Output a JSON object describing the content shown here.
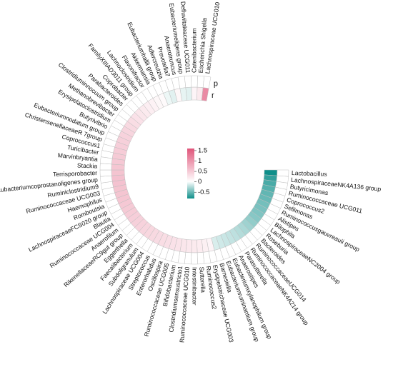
{
  "chart_data": {
    "type": "heatmap",
    "layout": "circular",
    "ring_headers": [
      "r",
      "p"
    ],
    "legend": {
      "ticks": [
        "1.5",
        "1",
        "0.5",
        "0",
        "-0.5"
      ],
      "range": [
        -0.8,
        1.6
      ],
      "colors": {
        "high": "#e0557a",
        "mid": "#ffffff",
        "low": "#0e8f8a"
      }
    },
    "groups": [
      {
        "label": "Lactobacillus",
        "r": -0.82,
        "p": 0.05
      },
      {
        "label": "LachnospiraceaeNK4A136 group",
        "r": -0.68,
        "p": 0.05
      },
      {
        "label": "Butyricimonas",
        "r": -0.6,
        "p": 0.05
      },
      {
        "label": "Ruminococcaceae UCG011",
        "r": -0.56,
        "p": 0.05
      },
      {
        "label": "Coprococcus2",
        "r": -0.52,
        "p": 0.05
      },
      {
        "label": "Sellimonas",
        "r": -0.5,
        "p": 0.05
      },
      {
        "label": "Ruminococcusgauvreauii group",
        "r": -0.46,
        "p": 0.05
      },
      {
        "label": "Alistipes",
        "r": -0.44,
        "p": 0.05
      },
      {
        "label": "Bilophila",
        "r": -0.42,
        "p": 0.05
      },
      {
        "label": "LachnospiraceaeNC2004 group",
        "r": -0.4,
        "p": 0.05
      },
      {
        "label": "Roseburia",
        "r": -0.36,
        "p": 0.05
      },
      {
        "label": "Bacteroides",
        "r": -0.32,
        "p": 0.05
      },
      {
        "label": "RuminococcaceaeUCG014",
        "r": -0.28,
        "p": 0.05
      },
      {
        "label": "RuminococcaceaeNK4A214 group",
        "r": -0.25,
        "p": 0.05
      },
      {
        "label": "Parasutterella",
        "r": -0.22,
        "p": 0.05
      },
      {
        "label": "Anaerostipes",
        "r": -0.2,
        "p": 0.05
      },
      {
        "label": "Eubacteriumxylanophilum group",
        "r": -0.18,
        "p": 0.05
      },
      {
        "label": "Eubacteriumruminantium group",
        "r": -0.16,
        "p": 0.05
      },
      {
        "label": "Barnesiella",
        "r": -0.13,
        "p": 0.05
      },
      {
        "label": "Erysipelotrichaceae UCG003",
        "r": 0.1,
        "p": 0.05
      },
      {
        "label": "Ruminococcus2",
        "r": 0.14,
        "p": 0.05
      },
      {
        "label": "Sutterella",
        "r": 0.18,
        "p": 0.05
      },
      {
        "label": "Intestinibacter",
        "r": 0.2,
        "p": 0.05
      },
      {
        "label": "Ruminococcaceae UCG010",
        "r": 0.22,
        "p": 0.05
      },
      {
        "label": "Clostridiumsensustricto1",
        "r": 0.24,
        "p": 0.05
      },
      {
        "label": "Bifidobacterium",
        "r": 0.26,
        "p": 0.05
      },
      {
        "label": "Ruminococcaceae UCG005",
        "r": 0.28,
        "p": 0.05
      },
      {
        "label": "Oscillospira",
        "r": 0.3,
        "p": 0.05
      },
      {
        "label": "Enterorhabdus",
        "r": 0.32,
        "p": 0.05
      },
      {
        "label": "Streptococcus",
        "r": 0.34,
        "p": 0.05
      },
      {
        "label": "Lachnospiraceae UCG004",
        "r": 0.36,
        "p": 0.05
      },
      {
        "label": "Subdoligranulum",
        "r": 0.38,
        "p": 0.05
      },
      {
        "label": "Faecalibacterium",
        "r": 0.4,
        "p": 0.05
      },
      {
        "label": "Eggerthella",
        "r": 0.42,
        "p": 0.05
      },
      {
        "label": "RikenellaceaeRC9gut group",
        "r": 0.44,
        "p": 0.05
      },
      {
        "label": "Anaerofilum",
        "r": 0.46,
        "p": 0.05
      },
      {
        "label": "Ruminococcaceae UCG004",
        "r": 0.48,
        "p": 0.05
      },
      {
        "label": "Blautia",
        "r": 0.5,
        "p": 0.05
      },
      {
        "label": "LachnospiraceaeFCS020 group",
        "r": 0.52,
        "p": 0.05
      },
      {
        "label": "Romboutsia",
        "r": 0.54,
        "p": 0.05
      },
      {
        "label": "Haemophilus",
        "r": 0.55,
        "p": 0.05
      },
      {
        "label": "Ruminococcaceae UCG003",
        "r": 0.56,
        "p": 0.05
      },
      {
        "label": "Ruminiclostridium9",
        "r": 0.57,
        "p": 0.05
      },
      {
        "label": "Eubacteriumcoprostanoligenes group",
        "r": 0.58,
        "p": 0.05
      },
      {
        "label": "Terrisporobacter",
        "r": 0.56,
        "p": 0.05
      },
      {
        "label": "Stackia",
        "r": 0.54,
        "p": 0.05
      },
      {
        "label": "Marvinbryantia",
        "r": 0.52,
        "p": 0.05
      },
      {
        "label": "Turicibacter",
        "r": 0.5,
        "p": 0.05
      },
      {
        "label": "Coprococcus1",
        "r": 0.48,
        "p": 0.05
      },
      {
        "label": "ChristensenellaceaeR 7group",
        "r": 0.46,
        "p": 0.05
      },
      {
        "label": "Eubacteriumnodatum group",
        "r": 0.44,
        "p": 0.05
      },
      {
        "label": "Butyrivibrio",
        "r": 0.42,
        "p": 0.05
      },
      {
        "label": "Erysipelatoclostridium",
        "r": 0.4,
        "p": 0.05
      },
      {
        "label": "Methanobrevibacter",
        "r": 0.36,
        "p": 0.05
      },
      {
        "label": "Clostridiuminnocuum group",
        "r": 0.32,
        "p": 0.05
      },
      {
        "label": "Parabacteroides",
        "r": 0.28,
        "p": 0.05
      },
      {
        "label": "Coprobacter",
        "r": 0.24,
        "p": 0.05
      },
      {
        "label": "FamilyXIIIAD3011 group",
        "r": 0.2,
        "p": 0.05
      },
      {
        "label": "Lachnoclostridium",
        "r": 0.16,
        "p": 0.05
      },
      {
        "label": "Flavonifractor",
        "r": 0.12,
        "p": 0.05
      },
      {
        "label": "Akkermansia",
        "r": 0.08,
        "p": 0.05
      },
      {
        "label": "Eubacteriumhallii group",
        "r": 0.05,
        "p": 0.05
      },
      {
        "label": "Adlercreutzia",
        "r": -0.06,
        "p": 0.05
      },
      {
        "label": "Prevotella7",
        "r": -0.1,
        "p": 0.05
      },
      {
        "label": "Anaerotruncus",
        "r": 0.08,
        "p": 0.05
      },
      {
        "label": "Eubacteriumeligens group",
        "r": -0.08,
        "p": 0.05
      },
      {
        "label": "Defluviitaleaceae UCG011",
        "r": -0.1,
        "p": 0.05
      },
      {
        "label": "Catenibacterium",
        "r": 0.1,
        "p": 0.05
      },
      {
        "label": "Escherichia Shigella",
        "r": 0.2,
        "p": 0.05
      },
      {
        "label": "Lachnospiraceae UCG010",
        "r": 1.1,
        "p": 0.05
      }
    ]
  }
}
